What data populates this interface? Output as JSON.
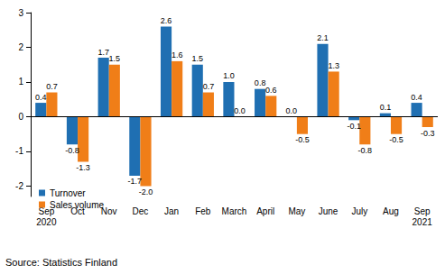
{
  "chart_data": {
    "type": "bar",
    "categories": [
      "Sep\n2020",
      "Oct",
      "Nov",
      "Dec",
      "Jan",
      "Feb",
      "March",
      "April",
      "May",
      "June",
      "July",
      "Aug",
      "Sep\n2021"
    ],
    "series": [
      {
        "name": "Turnover",
        "color": "#1f6fb2",
        "values": [
          0.4,
          -0.8,
          1.7,
          -1.7,
          2.6,
          1.5,
          1.0,
          0.8,
          0.0,
          2.1,
          -0.1,
          0.1,
          0.4
        ],
        "value_labels": [
          "0.4",
          "-0.8",
          "1.7",
          "-1.7",
          "2.6",
          "1.5",
          "1.0",
          "0.8",
          "0.0",
          "2.1",
          "-0.1",
          "0.1",
          "0.4"
        ]
      },
      {
        "name": "Sales volume",
        "color": "#f07e18",
        "values": [
          0.7,
          -1.3,
          1.5,
          -2.0,
          1.6,
          0.7,
          0.0,
          0.6,
          -0.5,
          1.3,
          -0.8,
          -0.5,
          -0.3
        ],
        "value_labels": [
          "0.7",
          "-1.3",
          "1.5",
          "-2.0",
          "1.6",
          "0.7",
          "0.0",
          "0.6",
          "-0.5",
          "1.3",
          "-0.8",
          "-0.5",
          "-0.3"
        ]
      }
    ],
    "ylim": [
      -2.3,
      3
    ],
    "yticks": [
      -2,
      -1,
      0,
      1,
      2,
      3
    ],
    "grid": false,
    "legend": "bottom-left",
    "data_labels": true,
    "source": "Source: Statistics Finland"
  }
}
